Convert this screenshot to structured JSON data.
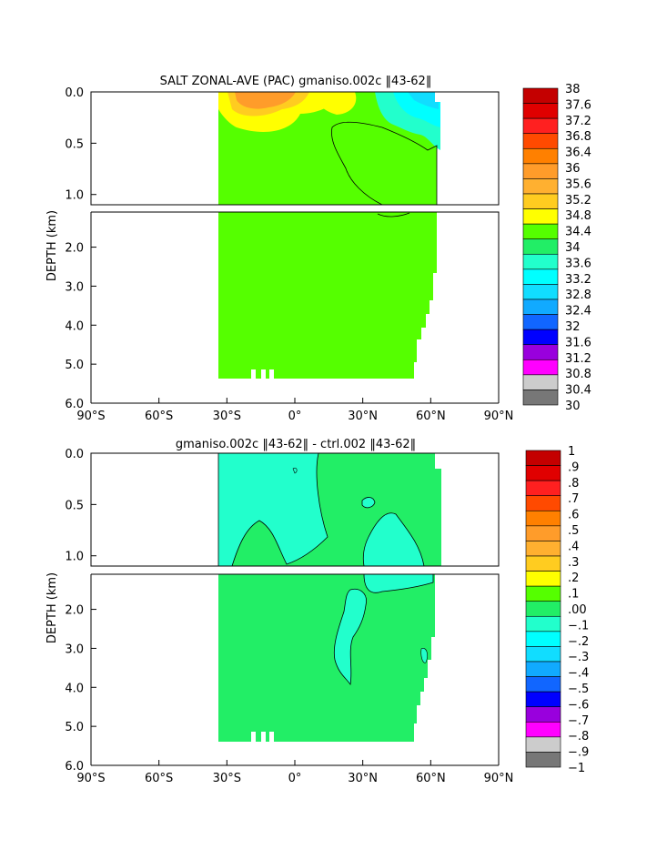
{
  "chart_data": [
    {
      "type": "heatmap",
      "title": "SALT ZONAL-AVE (PAC) gmaniso.002c ‖43-62‖",
      "ylabel": "DEPTH (km)",
      "xlabel": "",
      "x_ticks": [
        "90°S",
        "60°S",
        "30°S",
        "0°",
        "30°N",
        "60°N",
        "90°N"
      ],
      "y_ticks_upper": [
        "0.0",
        "0.5",
        "1.0"
      ],
      "y_ticks_lower": [
        "2.0",
        "3.0",
        "4.0",
        "5.0",
        "6.0"
      ],
      "xlim": [
        -90,
        90
      ],
      "ylim": [
        6.0,
        0.0
      ],
      "depth_axis_break_km": 1.1,
      "data_extent": {
        "lat_min": -34,
        "lat_max": 62,
        "depth_max_km": 5.4
      },
      "dominant_value_range": [
        34.4,
        34.8
      ],
      "features": [
        {
          "label": "max near surface",
          "lat": -20,
          "depth_km": 0.05,
          "value_range": [
            36.0,
            36.4
          ]
        },
        {
          "label": "low near surface",
          "lat": 50,
          "depth_km": 0.1,
          "value_range": [
            33.2,
            33.6
          ]
        }
      ],
      "colorbar_labels": [
        "38",
        "37.6",
        "37.2",
        "36.8",
        "36.4",
        "36",
        "35.6",
        "35.2",
        "34.8",
        "34.4",
        "34",
        "33.6",
        "33.2",
        "32.8",
        "32.4",
        "32",
        "31.6",
        "31.2",
        "30.8",
        "30.4",
        "30"
      ],
      "colorbar_colors": [
        "#c40000",
        "#e00000",
        "#ff2020",
        "#ff4a00",
        "#ff8000",
        "#ff9c2a",
        "#ffb030",
        "#ffcc20",
        "#ffff00",
        "#55ff00",
        "#22ee66",
        "#22ffcc",
        "#00ffff",
        "#11ddff",
        "#11aaff",
        "#1166ff",
        "#0000ff",
        "#9900dd",
        "#ff00ff",
        "#cccccc",
        "#777777"
      ]
    },
    {
      "type": "heatmap",
      "title": "gmaniso.002c ‖43-62‖ - ctrl.002 ‖43-62‖",
      "ylabel": "DEPTH (km)",
      "xlabel": "",
      "x_ticks": [
        "90°S",
        "60°S",
        "30°S",
        "0°",
        "30°N",
        "60°N",
        "90°N"
      ],
      "y_ticks_upper": [
        "0.0",
        "0.5",
        "1.0"
      ],
      "y_ticks_lower": [
        "2.0",
        "3.0",
        "4.0",
        "5.0",
        "6.0"
      ],
      "xlim": [
        -90,
        90
      ],
      "ylim": [
        6.0,
        0.0
      ],
      "depth_axis_break_km": 1.1,
      "data_extent": {
        "lat_min": -34,
        "lat_max": 62,
        "depth_max_km": 5.4
      },
      "dominant_value_range": [
        0.0,
        0.1
      ],
      "features": [
        {
          "label": "negative region",
          "lat": -30,
          "depth_km": 0.3,
          "value_range": [
            -0.1,
            0.0
          ]
        },
        {
          "label": "negative region",
          "lat": 40,
          "depth_km": 1.0,
          "value_range": [
            -0.1,
            0.0
          ]
        }
      ],
      "colorbar_labels": [
        "1",
        ".9",
        ".8",
        ".7",
        ".6",
        ".5",
        ".4",
        ".3",
        ".2",
        ".1",
        ".00",
        "−.1",
        "−.2",
        "−.3",
        "−.4",
        "−.5",
        "−.6",
        "−.7",
        "−.8",
        "−.9",
        "−1"
      ],
      "colorbar_colors": [
        "#c40000",
        "#e00000",
        "#ff2020",
        "#ff4a00",
        "#ff8000",
        "#ff9c2a",
        "#ffb030",
        "#ffcc20",
        "#ffff00",
        "#55ff00",
        "#22ee66",
        "#22ffcc",
        "#00ffff",
        "#11ddff",
        "#11aaff",
        "#1166ff",
        "#0000ff",
        "#9900dd",
        "#ff00ff",
        "#cccccc",
        "#777777"
      ]
    }
  ]
}
